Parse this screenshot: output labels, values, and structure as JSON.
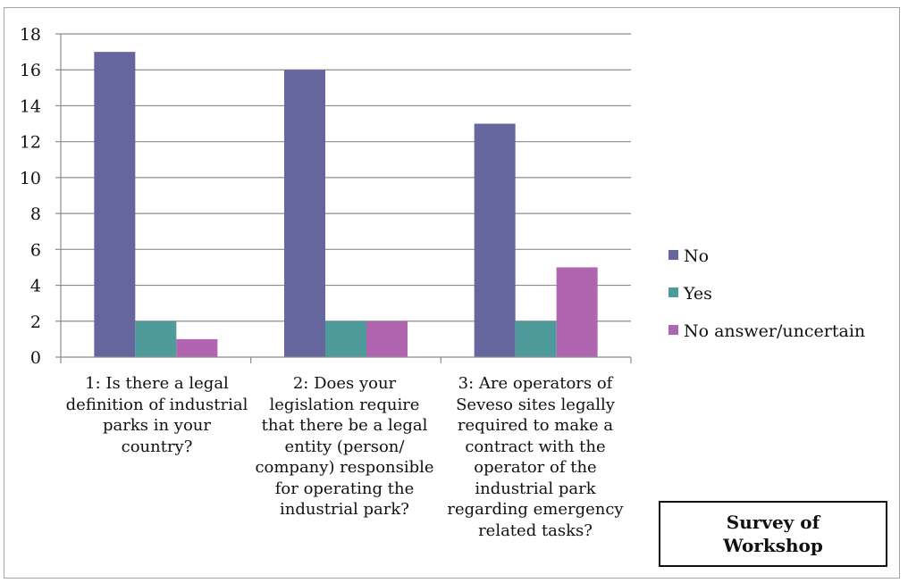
{
  "chart_data": {
    "type": "bar",
    "categories": [
      "1: Is there a legal definition of industrial parks in your country?",
      "2: Does your legislation require that there be a legal entity (person/ company) responsible for operating the industrial park?",
      "3: Are operators of Seveso sites legally required to make a contract with the operator of the industrial park regarding emergency related tasks?"
    ],
    "series": [
      {
        "name": "No",
        "values": [
          17,
          16,
          13
        ],
        "color": "#66669e"
      },
      {
        "name": "Yes",
        "values": [
          2,
          2,
          2
        ],
        "color": "#4f9a9a"
      },
      {
        "name": "No answer/uncertain",
        "values": [
          1,
          2,
          5
        ],
        "color": "#b065b0"
      }
    ],
    "ylim": [
      0,
      18
    ],
    "yticks": [
      0,
      2,
      4,
      6,
      8,
      10,
      12,
      14,
      16,
      18
    ],
    "grid": true,
    "legend_position": "right",
    "title": "",
    "xlabel": "",
    "ylabel": ""
  },
  "annotation": {
    "text": "Survey of Workshop"
  }
}
